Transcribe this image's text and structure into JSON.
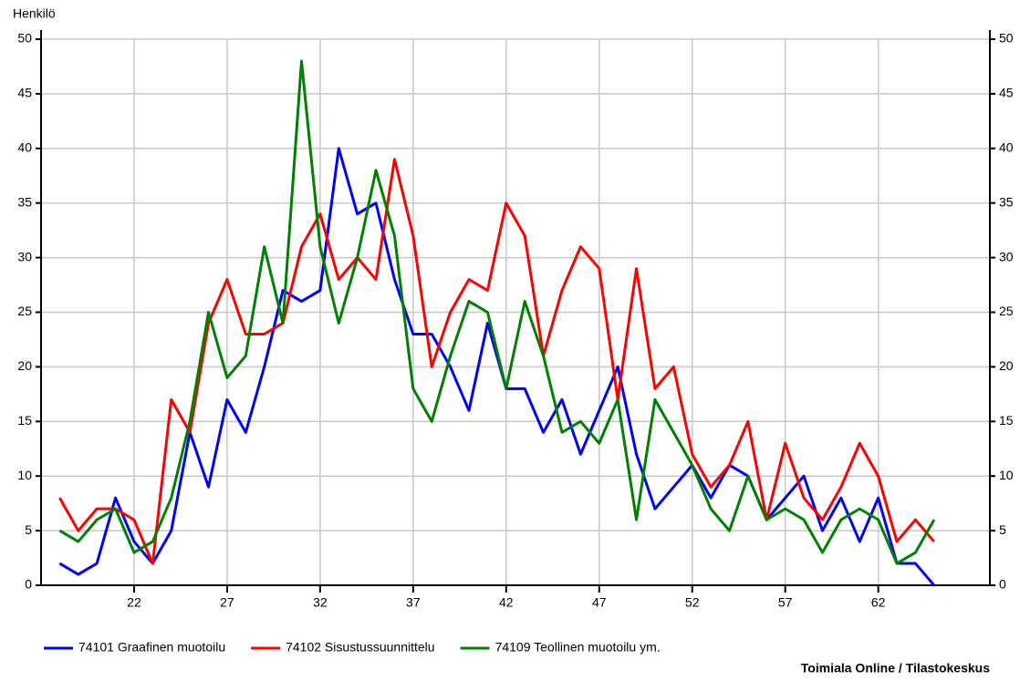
{
  "chart_data": {
    "type": "line",
    "y_label": "Henkilö",
    "source": "Toimiala Online / Tilastokeskus",
    "x": [
      18,
      19,
      20,
      21,
      22,
      23,
      24,
      25,
      26,
      27,
      28,
      29,
      30,
      31,
      32,
      33,
      34,
      35,
      36,
      37,
      38,
      39,
      40,
      41,
      42,
      43,
      44,
      45,
      46,
      47,
      48,
      49,
      50,
      51,
      52,
      53,
      54,
      55,
      56,
      57,
      58,
      59,
      60,
      61,
      62,
      63,
      64,
      65
    ],
    "xlim": [
      17,
      68
    ],
    "xticks": [
      22,
      27,
      32,
      37,
      42,
      47,
      52,
      57,
      62
    ],
    "ylim": [
      0,
      50
    ],
    "yticks": [
      0,
      5,
      10,
      15,
      20,
      25,
      30,
      35,
      40,
      45,
      50
    ],
    "grid": true,
    "legend": "bottom",
    "series": [
      {
        "name": "74101 Graafinen muotoilu",
        "color": "#0000ff",
        "values": [
          2,
          1,
          2,
          8,
          4,
          2,
          5,
          14,
          9,
          17,
          14,
          20,
          27,
          26,
          27,
          40,
          34,
          35,
          28,
          23,
          23,
          20,
          16,
          24,
          18,
          18,
          14,
          17,
          12,
          16,
          20,
          12,
          7,
          9,
          11,
          8,
          11,
          10,
          6,
          8,
          10,
          5,
          8,
          4,
          8,
          2,
          2,
          0
        ]
      },
      {
        "name": "74102 Sisustussuunnittelu",
        "color": "#ff0000",
        "values": [
          8,
          5,
          7,
          7,
          6,
          2,
          17,
          14,
          24,
          28,
          23,
          23,
          24,
          31,
          34,
          28,
          30,
          28,
          39,
          32,
          20,
          25,
          28,
          27,
          35,
          32,
          21,
          27,
          31,
          29,
          17,
          29,
          18,
          20,
          12,
          9,
          11,
          15,
          6,
          13,
          8,
          6,
          9,
          13,
          10,
          4,
          6,
          4
        ]
      },
      {
        "name": "74109 Teollinen muotoilu ym.",
        "color": "#008000",
        "values": [
          5,
          4,
          6,
          7,
          3,
          4,
          8,
          15,
          25,
          19,
          21,
          31,
          24,
          48,
          31,
          24,
          30,
          38,
          32,
          18,
          15,
          21,
          26,
          25,
          18,
          26,
          21,
          14,
          15,
          13,
          17,
          6,
          17,
          14,
          11,
          7,
          5,
          10,
          6,
          7,
          6,
          3,
          6,
          7,
          6,
          2,
          3,
          6
        ]
      }
    ]
  }
}
